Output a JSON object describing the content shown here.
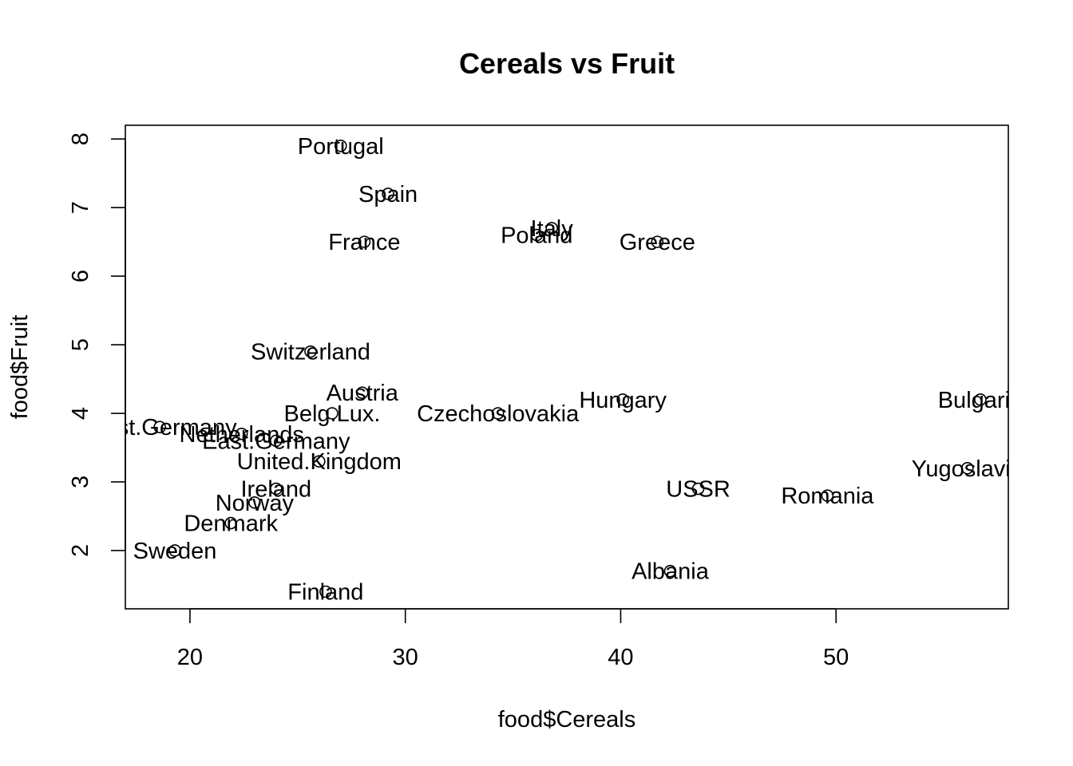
{
  "chart_data": {
    "type": "scatter",
    "title": "Cereals vs Fruit",
    "xlabel": "food$Cereals",
    "ylabel": "food$Fruit",
    "xlim": [
      17,
      58
    ],
    "ylim": [
      1.15,
      8.2
    ],
    "xticks": [
      20,
      30,
      40,
      50
    ],
    "yticks": [
      2,
      3,
      4,
      5,
      6,
      7,
      8
    ],
    "grid": false,
    "legend": "none",
    "points": [
      {
        "label": "Albania",
        "x": 42.3,
        "y": 1.7
      },
      {
        "label": "Austria",
        "x": 28.0,
        "y": 4.3
      },
      {
        "label": "Belg.Lux.",
        "x": 26.6,
        "y": 4.0
      },
      {
        "label": "Bulgaria",
        "x": 56.7,
        "y": 4.2
      },
      {
        "label": "Czechoslovakia",
        "x": 34.3,
        "y": 4.0
      },
      {
        "label": "Denmark",
        "x": 21.9,
        "y": 2.4
      },
      {
        "label": "East.Germany",
        "x": 24.0,
        "y": 3.6
      },
      {
        "label": "Finland",
        "x": 26.3,
        "y": 1.4
      },
      {
        "label": "France",
        "x": 28.1,
        "y": 6.5
      },
      {
        "label": "Greece",
        "x": 41.7,
        "y": 6.5
      },
      {
        "label": "Hungary",
        "x": 40.1,
        "y": 4.2
      },
      {
        "label": "Ireland",
        "x": 24.0,
        "y": 2.9
      },
      {
        "label": "Italy",
        "x": 36.8,
        "y": 6.7
      },
      {
        "label": "Netherlands",
        "x": 22.4,
        "y": 3.7
      },
      {
        "label": "Norway",
        "x": 23.0,
        "y": 2.7
      },
      {
        "label": "Poland",
        "x": 36.1,
        "y": 6.6
      },
      {
        "label": "Portugal",
        "x": 27.0,
        "y": 7.9
      },
      {
        "label": "Romania",
        "x": 49.6,
        "y": 2.8
      },
      {
        "label": "Spain",
        "x": 29.2,
        "y": 7.2
      },
      {
        "label": "Sweden",
        "x": 19.3,
        "y": 2.0
      },
      {
        "label": "Switzerland",
        "x": 25.6,
        "y": 4.9
      },
      {
        "label": "United.Kingdom",
        "x": 26.0,
        "y": 3.3
      },
      {
        "label": "USSR",
        "x": 43.6,
        "y": 2.9
      },
      {
        "label": "West.Germany",
        "x": 18.6,
        "y": 3.8
      },
      {
        "label": "Yugoslavia",
        "x": 56.1,
        "y": 3.2
      }
    ]
  }
}
